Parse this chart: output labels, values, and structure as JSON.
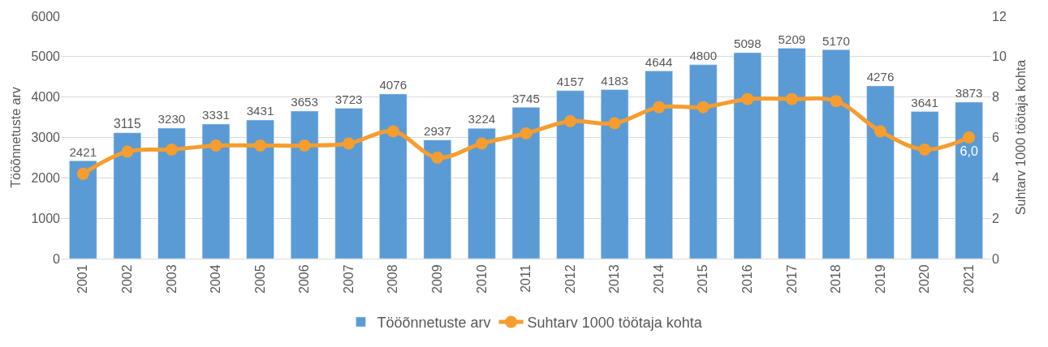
{
  "chart_data": {
    "type": "bar",
    "ylabel": "Tööõnnetuste arv",
    "y2label": "Suhtarv 1000 töötaja kohta",
    "categories": [
      "2001",
      "2002",
      "2003",
      "2004",
      "2005",
      "2006",
      "2007",
      "2008",
      "2009",
      "2010",
      "2011",
      "2012",
      "2013",
      "2014",
      "2015",
      "2016",
      "2017",
      "2018",
      "2019",
      "2020",
      "2021"
    ],
    "series": [
      {
        "name": "Tööõnnetuste arv",
        "color": "#5b9bd5",
        "data_labels": true,
        "values": [
          2421,
          3115,
          3230,
          3331,
          3431,
          3653,
          3723,
          4076,
          2937,
          3224,
          3745,
          4157,
          4183,
          4644,
          4800,
          5098,
          5209,
          5170,
          4276,
          3641,
          3873
        ]
      },
      {
        "name": "Suhtarv 1000 töötaja kohta",
        "type": "line",
        "axis": "y2",
        "color": "#f59d2f",
        "marker": "circle",
        "values": [
          4.2,
          5.3,
          5.4,
          5.6,
          5.6,
          5.6,
          5.7,
          6.3,
          5.0,
          5.7,
          6.2,
          6.8,
          6.7,
          7.5,
          7.5,
          7.9,
          7.9,
          7.8,
          6.3,
          5.4,
          6.0
        ],
        "value_labels": [
          null,
          null,
          null,
          null,
          null,
          null,
          null,
          null,
          null,
          null,
          null,
          null,
          null,
          null,
          null,
          null,
          null,
          null,
          null,
          null,
          "6,0"
        ]
      }
    ],
    "ylim": [
      0,
      6000
    ],
    "yticks": [
      0,
      1000,
      2000,
      3000,
      4000,
      5000,
      6000
    ],
    "y2lim": [
      0,
      12
    ],
    "y2ticks": [
      0,
      2,
      4,
      6,
      8,
      10,
      12
    ],
    "grid": "y",
    "legend": "bottom"
  }
}
